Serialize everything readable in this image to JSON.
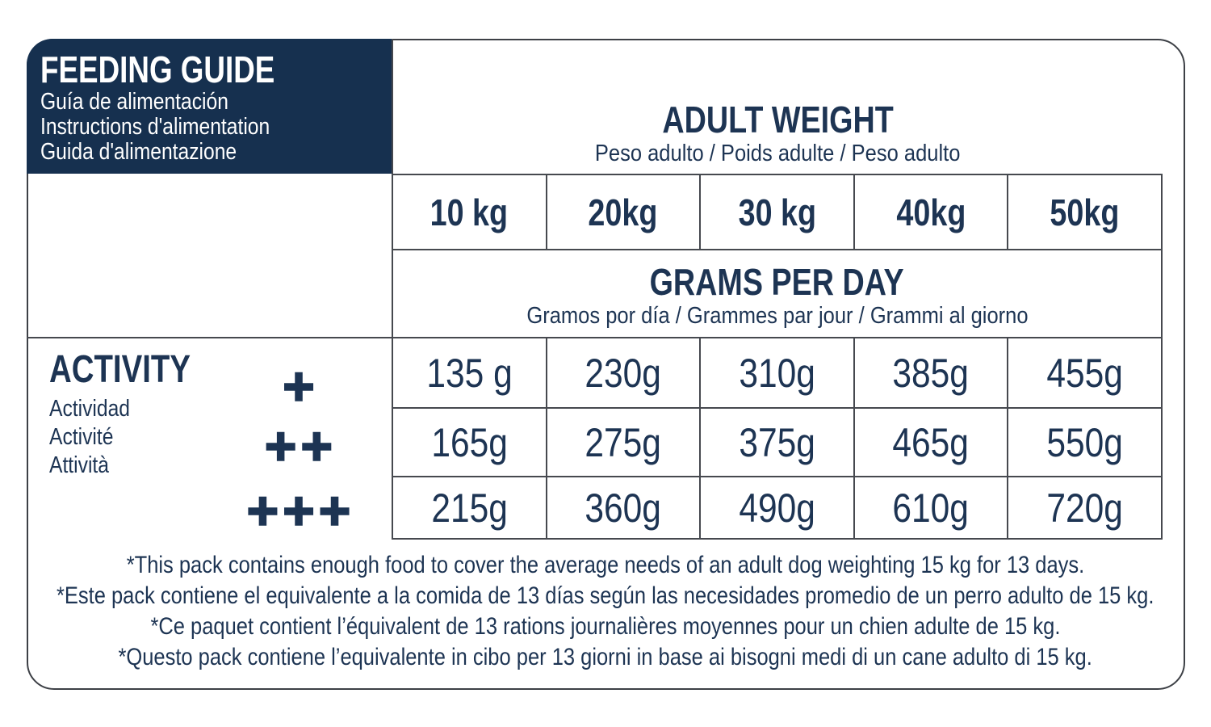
{
  "colors": {
    "navy_background": "#16304f",
    "navy_text": "#1d3453",
    "grid_line": "#46494f"
  },
  "feeding_guide": {
    "title": "FEEDING GUIDE",
    "subtitle_es": "Guía de alimentación",
    "subtitle_fr": "Instructions d'alimentation",
    "subtitle_it": "Guida d'alimentazione"
  },
  "adult_weight": {
    "title": "ADULT WEIGHT",
    "subtitle": "Peso adulto / Poids adulte / Peso adulto"
  },
  "grams_per_day": {
    "title": "GRAMS PER DAY",
    "subtitle": "Gramos por día / Grammes par jour / Grammi al giorno"
  },
  "activity": {
    "title": "ACTIVITY",
    "subtitle_es": "Actividad",
    "subtitle_fr": "Activité",
    "subtitle_it": "Attività"
  },
  "table": {
    "weight_headers": [
      "10 kg",
      "20kg",
      "30 kg",
      "40kg",
      "50kg"
    ],
    "rows": [
      {
        "level": "+",
        "values": [
          "135 g",
          "230g",
          "310g",
          "385g",
          "455g"
        ]
      },
      {
        "level": "++",
        "values": [
          "165g",
          "275g",
          "375g",
          "465g",
          "550g"
        ]
      },
      {
        "level": "+++",
        "values": [
          "215g",
          "360g",
          "490g",
          "610g",
          "720g"
        ]
      }
    ]
  },
  "footnotes": [
    "*This pack contains enough food to cover the average needs of an adult dog weighting 15 kg for 13 days.",
    "*Este pack contiene el equivalente a la comida de 13 días según las necesidades promedio de un perro adulto de 15 kg.",
    "*Ce paquet contient l’équivalent de 13 rations journalières moyennes pour un chien adulte de 15 kg.",
    "*Questo pack contiene l’equivalente in cibo per 13 giorni in base ai bisogni medi di un cane adulto di 15 kg."
  ]
}
